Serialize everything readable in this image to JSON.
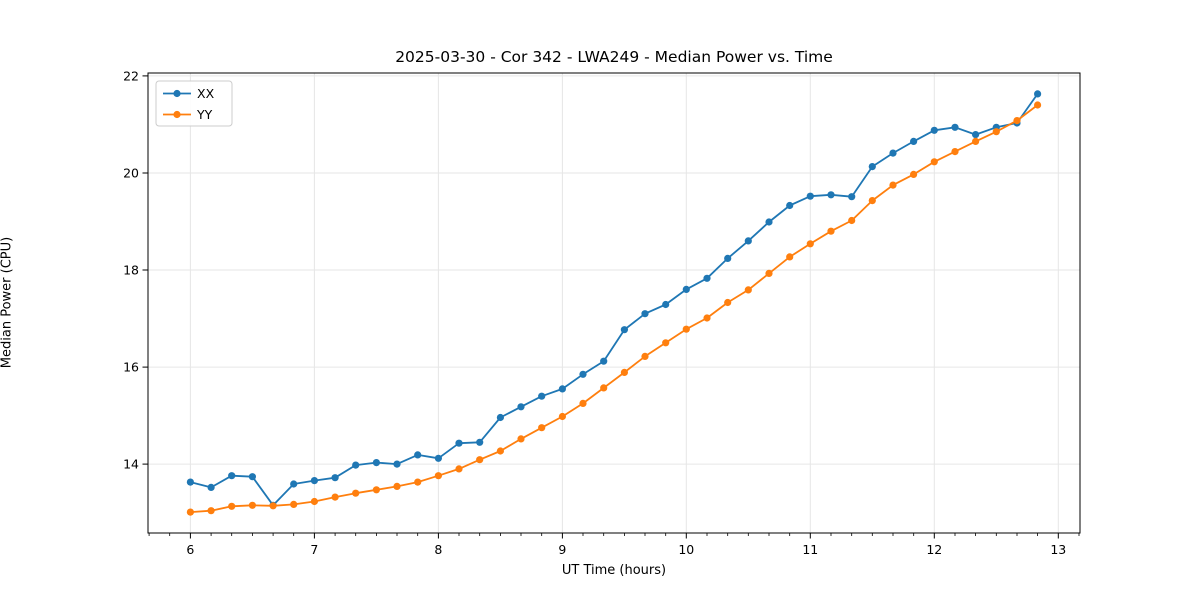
{
  "chart_data": {
    "type": "line",
    "title": "2025-03-30 - Cor 342 - LWA249 - Median Power vs. Time",
    "xlabel": "UT Time (hours)",
    "ylabel": "Median Power (CPU)",
    "xlim": [
      5.658,
      13.175
    ],
    "ylim": [
      12.58,
      22.06
    ],
    "x_ticks": [
      6,
      7,
      8,
      9,
      10,
      11,
      12,
      13
    ],
    "y_ticks": [
      14,
      16,
      18,
      20,
      22
    ],
    "x_minor_step": 0.1666667,
    "grid": true,
    "legend_position": "upper-left",
    "x": [
      6.0,
      6.1667,
      6.3333,
      6.5,
      6.6667,
      6.8333,
      7.0,
      7.1667,
      7.3333,
      7.5,
      7.6667,
      7.8333,
      8.0,
      8.1667,
      8.3333,
      8.5,
      8.6667,
      8.8333,
      9.0,
      9.1667,
      9.3333,
      9.5,
      9.6667,
      9.8333,
      10.0,
      10.1667,
      10.3333,
      10.5,
      10.6667,
      10.8333,
      11.0,
      11.1667,
      11.3333,
      11.5,
      11.6667,
      11.8333,
      12.0,
      12.1667,
      12.3333,
      12.5,
      12.6667,
      12.8333
    ],
    "series": [
      {
        "name": "XX",
        "color": "#1f77b4",
        "values": [
          13.63,
          13.52,
          13.76,
          13.74,
          13.15,
          13.59,
          13.66,
          13.72,
          13.98,
          14.03,
          14.0,
          14.19,
          14.12,
          14.43,
          14.45,
          14.96,
          15.18,
          15.4,
          15.55,
          15.85,
          16.12,
          16.77,
          17.1,
          17.29,
          17.6,
          17.83,
          18.24,
          18.6,
          18.99,
          19.33,
          19.52,
          19.55,
          19.51,
          20.13,
          20.41,
          20.65,
          20.88,
          20.94,
          20.79,
          20.94,
          21.03,
          21.63
        ]
      },
      {
        "name": "YY",
        "color": "#ff7f0e",
        "values": [
          13.01,
          13.04,
          13.13,
          13.15,
          13.14,
          13.17,
          13.23,
          13.32,
          13.4,
          13.47,
          13.54,
          13.63,
          13.76,
          13.9,
          14.09,
          14.27,
          14.52,
          14.75,
          14.98,
          15.25,
          15.57,
          15.89,
          16.22,
          16.5,
          16.78,
          17.01,
          17.33,
          17.59,
          17.93,
          18.27,
          18.54,
          18.8,
          19.02,
          19.43,
          19.75,
          19.97,
          20.23,
          20.44,
          20.65,
          20.85,
          21.08,
          21.4
        ]
      }
    ]
  }
}
